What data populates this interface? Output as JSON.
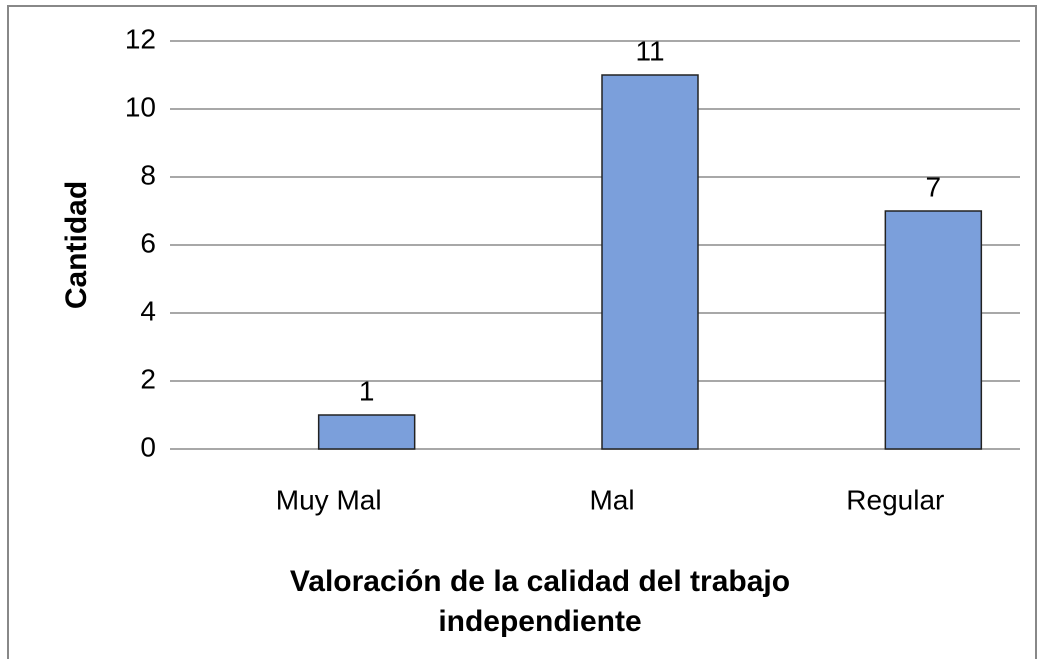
{
  "chart_data": {
    "type": "bar",
    "x_label": "Valoración de la calidad del trabajo independiente",
    "y_label": "Cantidad",
    "categories": [
      "Muy Mal",
      "Mal",
      "Regular"
    ],
    "values": [
      1,
      11,
      7
    ],
    "color": "#7b9fdb",
    "ylim": [
      0,
      12
    ],
    "yticks": [
      0,
      2,
      4,
      6,
      8,
      10,
      12
    ],
    "grid": true
  }
}
